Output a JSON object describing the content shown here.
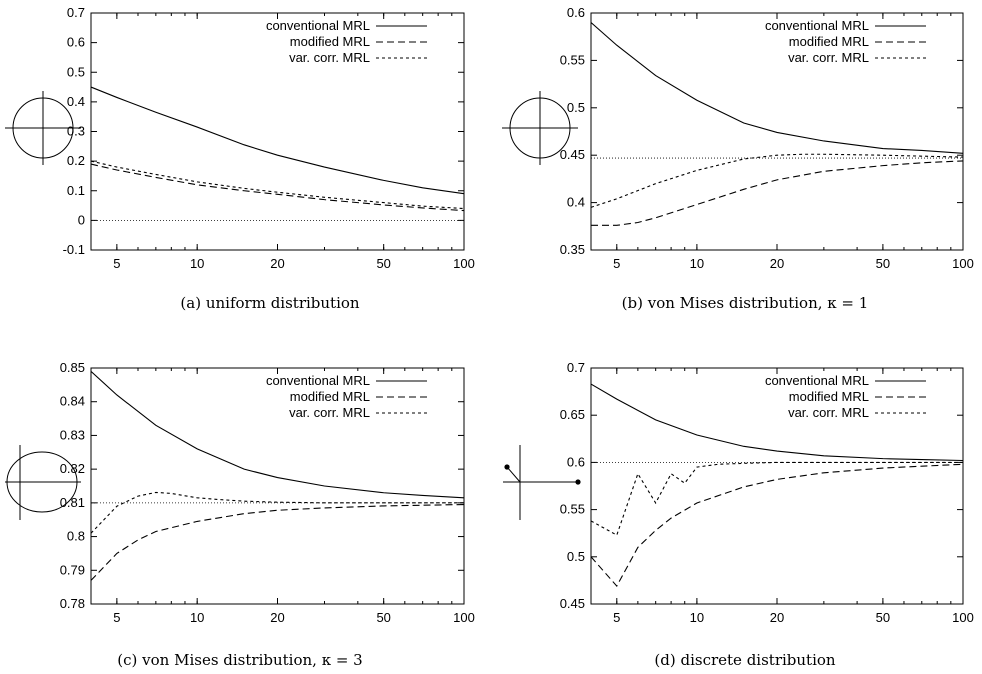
{
  "chart_data": [
    {
      "type": "line",
      "xscale": "log",
      "xlim": [
        4,
        100
      ],
      "ylim": [
        -0.1,
        0.7
      ],
      "xticks": [
        5,
        10,
        20,
        50,
        100
      ],
      "yticks": [
        -0.1,
        0,
        0.1,
        0.2,
        0.3,
        0.4,
        0.5,
        0.6,
        0.7
      ],
      "caption": "(a) uniform distribution",
      "inset_icon": "circle-with-cross",
      "legend_position": "top-right",
      "reference_line": 0,
      "series": [
        {
          "name": "conventional MRL",
          "x": [
            4,
            5,
            7,
            10,
            15,
            20,
            30,
            50,
            70,
            100
          ],
          "values": [
            0.45,
            0.415,
            0.365,
            0.315,
            0.255,
            0.22,
            0.18,
            0.135,
            0.11,
            0.09
          ]
        },
        {
          "name": "modified MRL",
          "x": [
            4,
            5,
            7,
            10,
            15,
            20,
            30,
            50,
            70,
            100
          ],
          "values": [
            0.19,
            0.17,
            0.145,
            0.12,
            0.1,
            0.088,
            0.07,
            0.052,
            0.042,
            0.033
          ]
        },
        {
          "name": "var. corr. MRL",
          "x": [
            4,
            5,
            7,
            10,
            15,
            20,
            30,
            50,
            70,
            100
          ],
          "values": [
            0.2,
            0.18,
            0.155,
            0.13,
            0.108,
            0.095,
            0.078,
            0.06,
            0.048,
            0.04
          ]
        }
      ]
    },
    {
      "type": "line",
      "xscale": "log",
      "xlim": [
        4,
        100
      ],
      "ylim": [
        0.35,
        0.6
      ],
      "xticks": [
        5,
        10,
        20,
        50,
        100
      ],
      "yticks": [
        0.35,
        0.4,
        0.45,
        0.5,
        0.55,
        0.6
      ],
      "caption": "(b) von Mises distribution, κ = 1",
      "inset_icon": "circle-with-cross",
      "legend_position": "top-right",
      "reference_line": 0.447,
      "series": [
        {
          "name": "conventional MRL",
          "x": [
            4,
            5,
            7,
            10,
            15,
            20,
            30,
            50,
            70,
            100
          ],
          "values": [
            0.59,
            0.566,
            0.534,
            0.508,
            0.484,
            0.474,
            0.465,
            0.457,
            0.455,
            0.452
          ]
        },
        {
          "name": "modified MRL",
          "x": [
            4,
            5,
            6,
            7,
            10,
            15,
            20,
            30,
            50,
            70,
            100
          ],
          "values": [
            0.376,
            0.376,
            0.379,
            0.384,
            0.398,
            0.414,
            0.424,
            0.433,
            0.439,
            0.442,
            0.444
          ]
        },
        {
          "name": "var. corr. MRL",
          "x": [
            4,
            5,
            7,
            10,
            15,
            20,
            25,
            30,
            50,
            70,
            100
          ],
          "values": [
            0.395,
            0.404,
            0.42,
            0.434,
            0.446,
            0.45,
            0.451,
            0.451,
            0.45,
            0.449,
            0.448
          ]
        }
      ]
    },
    {
      "type": "line",
      "xscale": "log",
      "xlim": [
        4,
        100
      ],
      "ylim": [
        0.78,
        0.85
      ],
      "xticks": [
        5,
        10,
        20,
        50,
        100
      ],
      "yticks": [
        0.78,
        0.79,
        0.8,
        0.81,
        0.82,
        0.83,
        0.84,
        0.85
      ],
      "caption": "(c) von Mises distribution, κ = 3",
      "inset_icon": "ellipse-with-cross",
      "legend_position": "top-right",
      "reference_line": 0.81,
      "series": [
        {
          "name": "conventional MRL",
          "x": [
            4,
            5,
            7,
            10,
            15,
            20,
            30,
            50,
            70,
            100
          ],
          "values": [
            0.849,
            0.842,
            0.833,
            0.826,
            0.82,
            0.8175,
            0.815,
            0.813,
            0.8122,
            0.8115
          ]
        },
        {
          "name": "modified MRL",
          "x": [
            4,
            5,
            6,
            7,
            10,
            15,
            20,
            30,
            50,
            70,
            100
          ],
          "values": [
            0.787,
            0.795,
            0.799,
            0.8015,
            0.8045,
            0.8068,
            0.8078,
            0.8085,
            0.8091,
            0.8093,
            0.8095
          ]
        },
        {
          "name": "var. corr. MRL",
          "x": [
            4,
            5,
            6,
            7,
            8,
            9,
            10,
            12,
            15,
            20,
            30,
            50,
            100
          ],
          "values": [
            0.801,
            0.809,
            0.812,
            0.8131,
            0.8128,
            0.8121,
            0.8115,
            0.811,
            0.8105,
            0.8102,
            0.81,
            0.81,
            0.81
          ]
        }
      ]
    },
    {
      "type": "line",
      "xscale": "log",
      "xlim": [
        4,
        100
      ],
      "ylim": [
        0.45,
        0.7
      ],
      "xticks": [
        5,
        10,
        20,
        50,
        100
      ],
      "yticks": [
        0.45,
        0.5,
        0.55,
        0.6,
        0.65,
        0.7
      ],
      "caption": "(d) discrete distribution",
      "inset_icon": "discrete-axes",
      "legend_position": "top-right",
      "reference_line": 0.6,
      "series": [
        {
          "name": "conventional MRL",
          "x": [
            4,
            5,
            7,
            10,
            15,
            20,
            30,
            50,
            70,
            100
          ],
          "values": [
            0.683,
            0.667,
            0.645,
            0.629,
            0.617,
            0.612,
            0.607,
            0.604,
            0.603,
            0.602
          ]
        },
        {
          "name": "modified MRL",
          "x": [
            4,
            5,
            6,
            7,
            8,
            10,
            15,
            20,
            30,
            50,
            70,
            100
          ],
          "values": [
            0.5,
            0.469,
            0.51,
            0.528,
            0.541,
            0.557,
            0.574,
            0.582,
            0.589,
            0.594,
            0.596,
            0.598
          ]
        },
        {
          "name": "var. corr. MRL",
          "x": [
            4,
            5,
            6,
            7,
            8,
            9,
            10,
            12,
            15,
            20,
            30,
            50,
            100
          ],
          "values": [
            0.538,
            0.523,
            0.588,
            0.557,
            0.588,
            0.578,
            0.595,
            0.598,
            0.599,
            0.6,
            0.6,
            0.6,
            0.6
          ]
        }
      ]
    }
  ]
}
